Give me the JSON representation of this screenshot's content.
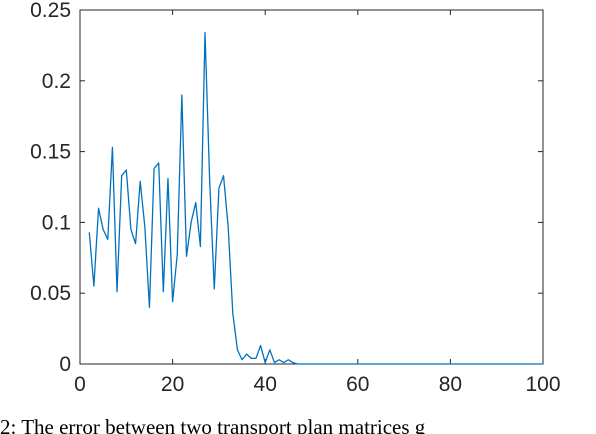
{
  "chart_data": {
    "type": "line",
    "title": "",
    "xlabel": "",
    "ylabel": "",
    "xlim": [
      0,
      100
    ],
    "ylim": [
      0,
      0.25
    ],
    "xticks": [
      0,
      20,
      40,
      60,
      80,
      100
    ],
    "yticks": [
      0,
      0.05,
      0.1,
      0.15,
      0.2,
      0.25
    ],
    "xtick_labels": [
      "0",
      "20",
      "40",
      "60",
      "80",
      "100"
    ],
    "ytick_labels": [
      "0",
      "0.05",
      "0.1",
      "0.15",
      "0.2",
      "0.25"
    ],
    "grid": false,
    "series": [
      {
        "color": "#0072BD",
        "x": [
          2,
          3,
          4,
          5,
          6,
          7,
          8,
          9,
          10,
          11,
          12,
          13,
          14,
          15,
          16,
          17,
          18,
          19,
          20,
          21,
          22,
          23,
          24,
          25,
          26,
          27,
          28,
          29,
          30,
          31,
          32,
          33,
          34,
          35,
          36,
          37,
          38,
          39,
          40,
          41,
          42,
          43,
          44,
          45,
          46,
          47,
          48,
          49,
          50,
          51,
          52,
          53,
          54,
          55,
          56,
          57,
          58,
          59,
          60,
          61,
          62,
          63,
          64,
          65,
          66,
          67,
          68,
          69,
          70,
          71,
          72,
          73,
          74,
          75,
          76,
          77,
          78,
          79,
          80,
          81,
          82,
          83,
          84,
          85,
          86,
          87,
          88,
          89,
          90,
          91,
          92,
          93,
          94,
          95,
          96,
          97,
          98,
          99,
          100
        ],
        "y": [
          0.093,
          0.055,
          0.11,
          0.095,
          0.088,
          0.153,
          0.051,
          0.133,
          0.137,
          0.095,
          0.085,
          0.129,
          0.097,
          0.04,
          0.138,
          0.142,
          0.051,
          0.131,
          0.044,
          0.077,
          0.19,
          0.076,
          0.1,
          0.114,
          0.083,
          0.234,
          0.13,
          0.053,
          0.124,
          0.133,
          0.097,
          0.036,
          0.01,
          0.003,
          0.007,
          0.004,
          0.004,
          0.013,
          0.001,
          0.01,
          0.001,
          0.003,
          0.001,
          0.003,
          0.001,
          0,
          0,
          0,
          0,
          0,
          0,
          0,
          0,
          0,
          0,
          0,
          0,
          0,
          0,
          0,
          0,
          0,
          0,
          0,
          0,
          0,
          0,
          0,
          0,
          0,
          0,
          0,
          0,
          0,
          0,
          0,
          0,
          0,
          0,
          0,
          0,
          0,
          0,
          0,
          0,
          0,
          0,
          0,
          0,
          0,
          0,
          0,
          0,
          0,
          0,
          0,
          0,
          0,
          0
        ]
      }
    ]
  },
  "caption": "2: The error between two transport plan matrices g"
}
